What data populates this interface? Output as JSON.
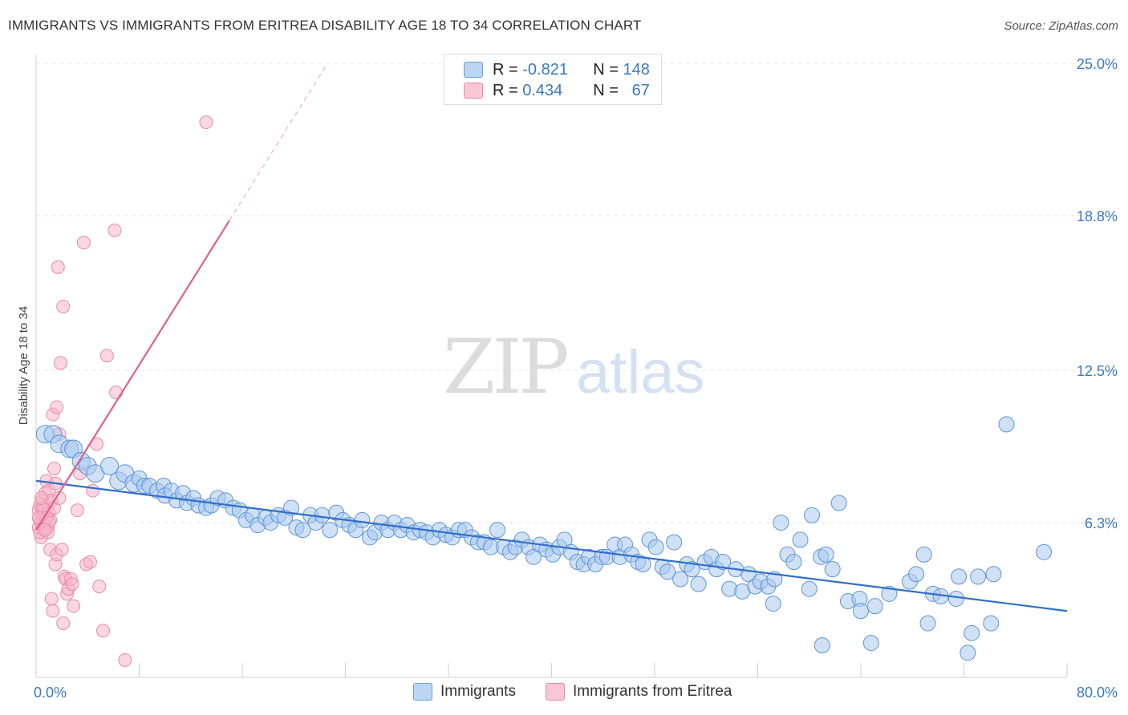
{
  "header": {
    "title": "IMMIGRANTS VS IMMIGRANTS FROM ERITREA DISABILITY AGE 18 TO 34 CORRELATION CHART",
    "source": "Source: ZipAtlas.com"
  },
  "watermark": {
    "zip": "ZIP",
    "atlas": "atlas"
  },
  "colors": {
    "blue_fill": "#a9c8ef",
    "blue_stroke": "#5d95d6",
    "blue_line": "#2f6fca",
    "pink_fill": "#f6b7cb",
    "pink_stroke": "#e98aa8",
    "pink_line": "#e05f8d",
    "tick_text": "#3b78c4",
    "grid": "#e3e3e3"
  },
  "legend_top": {
    "rows": [
      {
        "r_label": "R =",
        "r_value": "-0.821",
        "n_label": "N =",
        "n_value": "148"
      },
      {
        "r_label": "R =",
        "r_value": "0.434",
        "n_label": "N =",
        "n_value": "67"
      }
    ]
  },
  "legend_bottom": {
    "items": [
      "Immigrants",
      "Immigrants from Eritrea"
    ]
  },
  "chart_data": {
    "type": "scatter",
    "ylabel": "Disability Age 18 to 34",
    "xlim": [
      0,
      80
    ],
    "ylim": [
      0,
      25
    ],
    "x_tick_labels": [
      {
        "value": 0,
        "label": "0.0%"
      },
      {
        "value": 80,
        "label": "80.0%"
      }
    ],
    "y_tick_labels": [
      {
        "value": 6.3,
        "label": "6.3%"
      },
      {
        "value": 12.5,
        "label": "12.5%"
      },
      {
        "value": 18.8,
        "label": "18.8%"
      },
      {
        "value": 25.0,
        "label": "25.0%"
      }
    ],
    "x_minor_ticks": [
      8,
      16,
      24,
      32,
      40,
      48,
      56,
      64,
      72,
      80
    ],
    "grid": "horizontal dashed",
    "legend_position": "top-center",
    "series": [
      {
        "name": "Immigrants",
        "color": "#5d95d6",
        "r": -0.821,
        "n": 148,
        "trend": {
          "x": [
            0,
            80
          ],
          "y": [
            8.0,
            2.7
          ]
        },
        "points": [
          [
            0.7,
            9.9
          ],
          [
            1.3,
            9.9
          ],
          [
            1.8,
            9.5
          ],
          [
            2.6,
            9.3
          ],
          [
            2.9,
            9.3
          ],
          [
            3.5,
            8.8
          ],
          [
            4.0,
            8.6
          ],
          [
            4.6,
            8.3
          ],
          [
            5.7,
            8.6
          ],
          [
            6.4,
            8.0
          ],
          [
            6.9,
            8.3
          ],
          [
            7.6,
            7.9
          ],
          [
            8.0,
            8.1
          ],
          [
            8.4,
            7.8
          ],
          [
            8.8,
            7.8
          ],
          [
            9.4,
            7.6
          ],
          [
            9.9,
            7.8
          ],
          [
            10.0,
            7.4
          ],
          [
            10.5,
            7.6
          ],
          [
            10.9,
            7.2
          ],
          [
            11.4,
            7.5
          ],
          [
            11.7,
            7.1
          ],
          [
            12.2,
            7.3
          ],
          [
            12.6,
            7.0
          ],
          [
            13.2,
            6.9
          ],
          [
            13.6,
            7.0
          ],
          [
            14.1,
            7.3
          ],
          [
            14.7,
            7.2
          ],
          [
            15.3,
            6.9
          ],
          [
            15.8,
            6.8
          ],
          [
            16.3,
            6.4
          ],
          [
            16.8,
            6.6
          ],
          [
            17.2,
            6.2
          ],
          [
            17.8,
            6.5
          ],
          [
            18.2,
            6.3
          ],
          [
            18.8,
            6.6
          ],
          [
            19.3,
            6.5
          ],
          [
            19.8,
            6.9
          ],
          [
            20.2,
            6.1
          ],
          [
            20.7,
            6.0
          ],
          [
            21.3,
            6.6
          ],
          [
            21.7,
            6.3
          ],
          [
            22.2,
            6.6
          ],
          [
            22.8,
            6.0
          ],
          [
            23.3,
            6.7
          ],
          [
            23.8,
            6.4
          ],
          [
            24.3,
            6.2
          ],
          [
            24.8,
            6.0
          ],
          [
            25.3,
            6.4
          ],
          [
            25.9,
            5.7
          ],
          [
            26.3,
            5.9
          ],
          [
            26.8,
            6.3
          ],
          [
            27.3,
            6.0
          ],
          [
            27.8,
            6.3
          ],
          [
            28.3,
            6.0
          ],
          [
            28.8,
            6.2
          ],
          [
            29.3,
            5.9
          ],
          [
            29.8,
            6.0
          ],
          [
            30.3,
            5.9
          ],
          [
            30.8,
            5.7
          ],
          [
            31.3,
            6.0
          ],
          [
            31.8,
            5.8
          ],
          [
            32.3,
            5.7
          ],
          [
            32.8,
            6.0
          ],
          [
            33.3,
            6.0
          ],
          [
            33.8,
            5.7
          ],
          [
            34.3,
            5.5
          ],
          [
            34.8,
            5.5
          ],
          [
            35.3,
            5.3
          ],
          [
            35.8,
            6.0
          ],
          [
            36.3,
            5.3
          ],
          [
            36.8,
            5.1
          ],
          [
            37.2,
            5.3
          ],
          [
            37.7,
            5.6
          ],
          [
            38.2,
            5.3
          ],
          [
            38.6,
            4.9
          ],
          [
            39.1,
            5.4
          ],
          [
            39.6,
            5.2
          ],
          [
            40.1,
            5.0
          ],
          [
            40.6,
            5.3
          ],
          [
            41.0,
            5.6
          ],
          [
            41.5,
            5.1
          ],
          [
            42.0,
            4.7
          ],
          [
            42.5,
            4.6
          ],
          [
            42.9,
            4.9
          ],
          [
            43.4,
            4.6
          ],
          [
            43.9,
            4.9
          ],
          [
            44.3,
            4.9
          ],
          [
            44.9,
            5.4
          ],
          [
            45.3,
            4.9
          ],
          [
            45.7,
            5.4
          ],
          [
            46.2,
            5.0
          ],
          [
            46.7,
            4.7
          ],
          [
            47.1,
            4.6
          ],
          [
            47.6,
            5.6
          ],
          [
            48.1,
            5.3
          ],
          [
            48.6,
            4.5
          ],
          [
            49.0,
            4.3
          ],
          [
            49.5,
            5.5
          ],
          [
            50.0,
            4.0
          ],
          [
            50.5,
            4.6
          ],
          [
            50.9,
            4.4
          ],
          [
            51.4,
            3.8
          ],
          [
            51.9,
            4.7
          ],
          [
            52.4,
            4.9
          ],
          [
            52.8,
            4.4
          ],
          [
            53.3,
            4.7
          ],
          [
            53.8,
            3.6
          ],
          [
            54.3,
            4.4
          ],
          [
            54.8,
            3.5
          ],
          [
            55.3,
            4.2
          ],
          [
            55.8,
            3.7
          ],
          [
            56.2,
            3.9
          ],
          [
            56.8,
            3.7
          ],
          [
            57.3,
            4.0
          ],
          [
            57.8,
            6.3
          ],
          [
            58.3,
            5.0
          ],
          [
            58.8,
            4.7
          ],
          [
            59.3,
            5.6
          ],
          [
            60.2,
            6.6
          ],
          [
            60.9,
            4.9
          ],
          [
            61.3,
            5.0
          ],
          [
            61.8,
            4.4
          ],
          [
            62.3,
            7.1
          ],
          [
            63.0,
            3.1
          ],
          [
            63.9,
            3.2
          ],
          [
            64.0,
            2.7
          ],
          [
            65.1,
            2.9
          ],
          [
            66.2,
            3.4
          ],
          [
            67.8,
            3.9
          ],
          [
            68.3,
            4.2
          ],
          [
            68.9,
            5.0
          ],
          [
            69.2,
            2.2
          ],
          [
            69.6,
            3.4
          ],
          [
            70.2,
            3.3
          ],
          [
            71.4,
            3.2
          ],
          [
            71.6,
            4.1
          ],
          [
            72.3,
            1.0
          ],
          [
            72.6,
            1.8
          ],
          [
            73.1,
            4.1
          ],
          [
            74.1,
            2.2
          ],
          [
            74.3,
            4.2
          ],
          [
            75.3,
            10.3
          ],
          [
            78.2,
            5.1
          ],
          [
            61.0,
            1.3
          ],
          [
            64.8,
            1.4
          ],
          [
            57.2,
            3.0
          ],
          [
            60.0,
            3.6
          ]
        ]
      },
      {
        "name": "Immigrants from Eritrea",
        "color": "#e98aa8",
        "r": 0.434,
        "n": 67,
        "trend": {
          "x": [
            0,
            15
          ],
          "y": [
            6.0,
            18.6
          ]
        },
        "trend_extended": {
          "x": [
            15,
            22.5
          ],
          "y": [
            18.6,
            24.9
          ]
        },
        "points": [
          [
            0.2,
            6.1
          ],
          [
            0.2,
            6.8
          ],
          [
            0.3,
            6.4
          ],
          [
            0.3,
            7.0
          ],
          [
            0.4,
            5.7
          ],
          [
            0.4,
            6.3
          ],
          [
            0.5,
            6.6
          ],
          [
            0.5,
            7.2
          ],
          [
            0.6,
            6.0
          ],
          [
            0.6,
            6.8
          ],
          [
            0.7,
            7.5
          ],
          [
            0.7,
            6.3
          ],
          [
            0.8,
            6.6
          ],
          [
            0.8,
            8.0
          ],
          [
            0.9,
            6.1
          ],
          [
            0.9,
            7.0
          ],
          [
            1.0,
            6.7
          ],
          [
            1.0,
            7.6
          ],
          [
            1.1,
            6.4
          ],
          [
            1.1,
            5.2
          ],
          [
            1.2,
            7.2
          ],
          [
            1.2,
            3.2
          ],
          [
            1.3,
            2.7
          ],
          [
            1.3,
            10.7
          ],
          [
            1.4,
            6.9
          ],
          [
            1.4,
            8.5
          ],
          [
            1.5,
            7.9
          ],
          [
            1.5,
            4.6
          ],
          [
            1.6,
            11.0
          ],
          [
            1.6,
            5.0
          ],
          [
            1.7,
            16.7
          ],
          [
            1.8,
            9.9
          ],
          [
            1.9,
            12.8
          ],
          [
            2.0,
            5.2
          ],
          [
            2.1,
            2.2
          ],
          [
            2.1,
            15.1
          ],
          [
            2.2,
            4.1
          ],
          [
            2.3,
            4.0
          ],
          [
            2.4,
            3.4
          ],
          [
            2.5,
            3.6
          ],
          [
            2.7,
            4.0
          ],
          [
            2.8,
            3.8
          ],
          [
            2.9,
            2.9
          ],
          [
            3.2,
            6.8
          ],
          [
            3.4,
            8.3
          ],
          [
            3.7,
            17.7
          ],
          [
            3.9,
            4.6
          ],
          [
            4.2,
            4.7
          ],
          [
            4.4,
            7.6
          ],
          [
            4.7,
            9.5
          ],
          [
            4.9,
            3.7
          ],
          [
            5.2,
            1.9
          ],
          [
            5.5,
            13.1
          ],
          [
            6.1,
            18.2
          ],
          [
            6.2,
            11.6
          ],
          [
            6.9,
            0.7
          ],
          [
            13.2,
            22.6
          ],
          [
            0.3,
            5.9
          ],
          [
            0.5,
            6.9
          ],
          [
            0.6,
            6.2
          ],
          [
            0.8,
            6.5
          ],
          [
            1.0,
            6.3
          ],
          [
            0.4,
            7.3
          ],
          [
            0.2,
            6.5
          ],
          [
            1.8,
            7.3
          ],
          [
            0.9,
            5.9
          ],
          [
            0.7,
            6.0
          ]
        ]
      }
    ]
  }
}
